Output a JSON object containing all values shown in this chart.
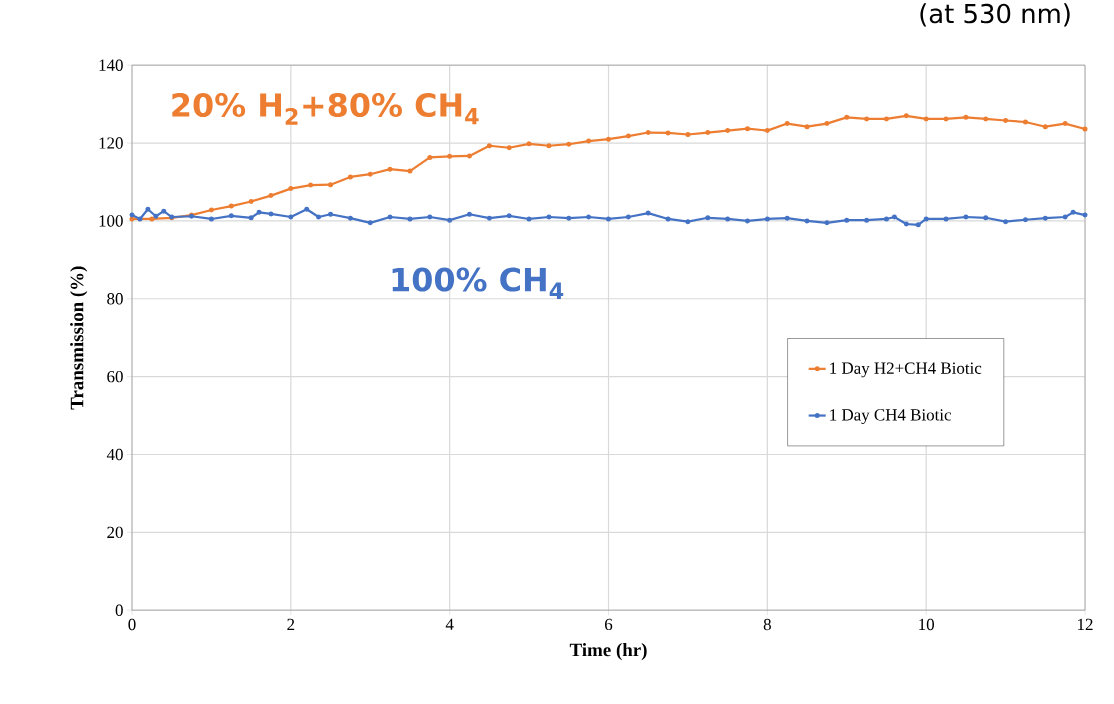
{
  "chart_data": {
    "type": "line",
    "xlabel": "Time (hr)",
    "ylabel": "Transmission (%)",
    "xlim": [
      0,
      12
    ],
    "xticks": [
      0,
      2,
      4,
      6,
      8,
      10,
      12
    ],
    "ylim": [
      0,
      140
    ],
    "yticks": [
      0,
      20,
      40,
      60,
      80,
      100,
      120,
      140
    ],
    "grid": true,
    "legend": "center right",
    "marker": "circle",
    "line_style": "solid",
    "series": [
      {
        "name": "1 Day H2+CH4 Biotic",
        "color": "#ed7d31",
        "x": [
          0,
          0.25,
          0.5,
          0.75,
          1,
          1.25,
          1.5,
          1.75,
          2,
          2.25,
          2.5,
          2.75,
          3,
          3.25,
          3.5,
          3.75,
          4,
          4.25,
          4.5,
          4.75,
          5,
          5.25,
          5.5,
          5.75,
          6,
          6.25,
          6.5,
          6.75,
          7,
          7.25,
          7.5,
          7.75,
          8,
          8.25,
          8.5,
          8.75,
          9,
          9.25,
          9.5,
          9.75,
          10,
          10.25,
          10.5,
          10.75,
          11,
          11.25,
          11.5,
          11.75,
          12
        ],
        "values": [
          100.5,
          100.5,
          100.8,
          101.5,
          102.8,
          103.8,
          105,
          106.5,
          108.3,
          109.2,
          109.3,
          111.3,
          112,
          113.3,
          112.8,
          116.3,
          116.6,
          116.7,
          119.3,
          118.8,
          119.8,
          119.3,
          119.7,
          120.5,
          121,
          121.8,
          122.7,
          122.6,
          122.2,
          122.7,
          123.2,
          123.7,
          123.2,
          125,
          124.2,
          125,
          126.6,
          126.2,
          126.2,
          127,
          126.2,
          126.2,
          126.6,
          126.2,
          125.8,
          125.4,
          124.2,
          125,
          123.6
        ]
      },
      {
        "name": "1 Day CH4 Biotic",
        "color": "#4472c4",
        "x": [
          0,
          0.1,
          0.2,
          0.3,
          0.4,
          0.5,
          0.75,
          1,
          1.25,
          1.5,
          1.6,
          1.75,
          2,
          2.2,
          2.35,
          2.5,
          2.75,
          3,
          3.25,
          3.5,
          3.75,
          4,
          4.25,
          4.5,
          4.75,
          5,
          5.25,
          5.5,
          5.75,
          6,
          6.25,
          6.5,
          6.75,
          7,
          7.25,
          7.5,
          7.75,
          8,
          8.25,
          8.5,
          8.75,
          9,
          9.25,
          9.5,
          9.6,
          9.75,
          9.9,
          10,
          10.25,
          10.5,
          10.75,
          11,
          11.25,
          11.5,
          11.75,
          11.85,
          12
        ],
        "values": [
          101.5,
          100.5,
          103,
          101.2,
          102.5,
          101,
          101.2,
          100.5,
          101.3,
          100.8,
          102.2,
          101.8,
          101,
          103,
          101,
          101.7,
          100.7,
          99.5,
          101,
          100.5,
          101,
          100.2,
          101.7,
          100.7,
          101.3,
          100.5,
          101,
          100.7,
          101,
          100.5,
          101,
          102,
          100.5,
          99.8,
          100.8,
          100.5,
          100,
          100.5,
          100.7,
          100,
          99.5,
          100.2,
          100.2,
          100.5,
          101,
          99.2,
          99,
          100.5,
          100.5,
          101,
          100.8,
          99.8,
          100.3,
          100.7,
          101,
          102.2,
          101.5
        ]
      }
    ],
    "annotations": [
      "20% H$_{2}$+80% CH$_{4}$",
      "100% CH$_{4}$",
      "(at 530 nm)"
    ]
  }
}
